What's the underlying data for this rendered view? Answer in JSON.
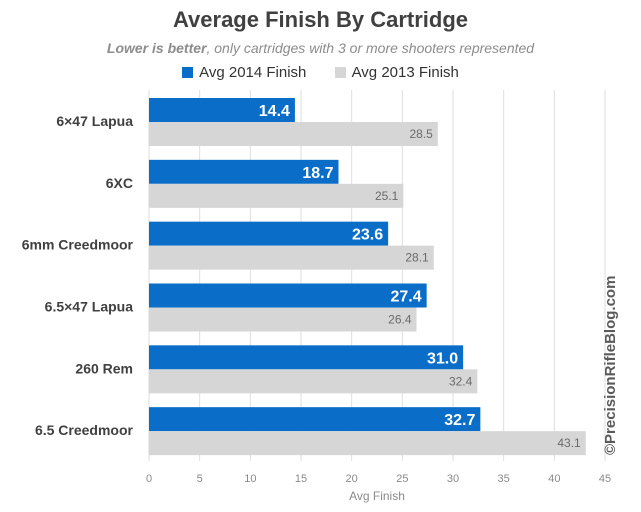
{
  "chart_data": {
    "type": "bar",
    "orientation": "horizontal",
    "title": "Average Finish By Cartridge",
    "subtitle_emphasis": "Lower is better",
    "subtitle_rest": ", only cartridges with 3 or more shooters represented",
    "xlabel": "Avg Finish",
    "ylabel": "",
    "xlim": [
      0,
      45
    ],
    "xticks": [
      0,
      5,
      10,
      15,
      20,
      25,
      30,
      35,
      40,
      45
    ],
    "grid": true,
    "legend_position": "top",
    "categories": [
      "6×47 Lapua",
      "6XC",
      "6mm Creedmoor",
      "6.5×47 Lapua",
      "260 Rem",
      "6.5 Creedmoor"
    ],
    "series": [
      {
        "name": "Avg 2014 Finish",
        "color": "#0a6ec8",
        "values": [
          14.4,
          18.7,
          23.6,
          27.4,
          31.0,
          32.7
        ]
      },
      {
        "name": "Avg 2013 Finish",
        "color": "#d6d6d6",
        "values": [
          28.5,
          25.1,
          28.1,
          26.4,
          32.4,
          43.1
        ]
      }
    ]
  },
  "watermark": "©PrecisionRifleBlog.com"
}
